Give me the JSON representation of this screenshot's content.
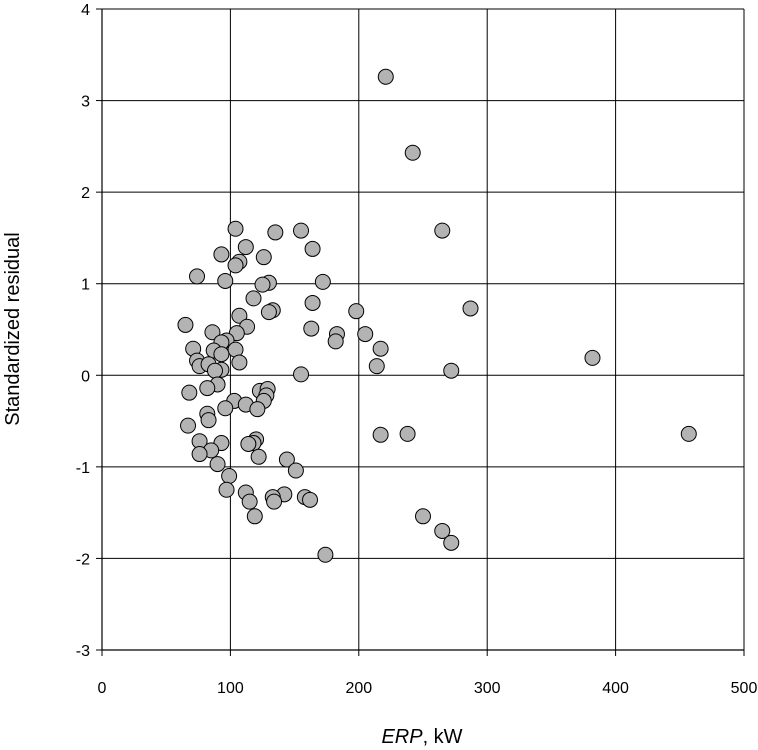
{
  "chart_data": {
    "type": "scatter",
    "title": "",
    "xlabel_italic": "ERP",
    "xlabel_rest": ", kW",
    "ylabel": "Standardized residual",
    "xlim": [
      0,
      500
    ],
    "ylim": [
      -3,
      4
    ],
    "xticks": [
      0,
      100,
      200,
      300,
      400,
      500
    ],
    "yticks": [
      -3,
      -2,
      -1,
      0,
      1,
      2,
      3,
      4
    ],
    "grid": true,
    "marker_fill": "#b3b3b3",
    "marker_edge": "#000000",
    "series": [
      {
        "points": [
          [
            221,
            3.26
          ],
          [
            242,
            2.43
          ],
          [
            265,
            1.58
          ],
          [
            287,
            0.73
          ],
          [
            382,
            0.19
          ],
          [
            457,
            -0.64
          ],
          [
            104,
            1.6
          ],
          [
            155,
            1.58
          ],
          [
            135,
            1.56
          ],
          [
            164,
            1.38
          ],
          [
            112,
            1.4
          ],
          [
            93,
            1.32
          ],
          [
            126,
            1.29
          ],
          [
            107,
            1.24
          ],
          [
            104,
            1.2
          ],
          [
            74,
            1.08
          ],
          [
            172,
            1.02
          ],
          [
            96,
            1.03
          ],
          [
            130,
            1.01
          ],
          [
            125,
            0.99
          ],
          [
            118,
            0.84
          ],
          [
            164,
            0.79
          ],
          [
            133,
            0.71
          ],
          [
            130,
            0.69
          ],
          [
            198,
            0.7
          ],
          [
            107,
            0.65
          ],
          [
            65,
            0.55
          ],
          [
            113,
            0.53
          ],
          [
            163,
            0.51
          ],
          [
            105,
            0.46
          ],
          [
            86,
            0.47
          ],
          [
            183,
            0.45
          ],
          [
            205,
            0.45
          ],
          [
            182,
            0.37
          ],
          [
            97,
            0.38
          ],
          [
            93,
            0.36
          ],
          [
            71,
            0.29
          ],
          [
            217,
            0.29
          ],
          [
            104,
            0.28
          ],
          [
            87,
            0.27
          ],
          [
            93,
            0.23
          ],
          [
            74,
            0.16
          ],
          [
            107,
            0.14
          ],
          [
            76,
            0.1
          ],
          [
            214,
            0.1
          ],
          [
            83,
            0.12
          ],
          [
            93,
            0.06
          ],
          [
            88,
            0.05
          ],
          [
            272,
            0.05
          ],
          [
            155,
            0.01
          ],
          [
            90,
            -0.1
          ],
          [
            82,
            -0.14
          ],
          [
            68,
            -0.19
          ],
          [
            123,
            -0.17
          ],
          [
            129,
            -0.15
          ],
          [
            128,
            -0.22
          ],
          [
            103,
            -0.28
          ],
          [
            126,
            -0.28
          ],
          [
            112,
            -0.32
          ],
          [
            96,
            -0.36
          ],
          [
            121,
            -0.37
          ],
          [
            82,
            -0.42
          ],
          [
            83,
            -0.49
          ],
          [
            67,
            -0.55
          ],
          [
            217,
            -0.65
          ],
          [
            238,
            -0.64
          ],
          [
            120,
            -0.7
          ],
          [
            76,
            -0.72
          ],
          [
            118,
            -0.74
          ],
          [
            93,
            -0.74
          ],
          [
            114,
            -0.75
          ],
          [
            85,
            -0.82
          ],
          [
            76,
            -0.86
          ],
          [
            122,
            -0.89
          ],
          [
            144,
            -0.92
          ],
          [
            90,
            -0.97
          ],
          [
            151,
            -1.04
          ],
          [
            99,
            -1.1
          ],
          [
            97,
            -1.25
          ],
          [
            112,
            -1.28
          ],
          [
            142,
            -1.3
          ],
          [
            133,
            -1.33
          ],
          [
            158,
            -1.33
          ],
          [
            162,
            -1.36
          ],
          [
            134,
            -1.38
          ],
          [
            115,
            -1.38
          ],
          [
            250,
            -1.54
          ],
          [
            119,
            -1.54
          ],
          [
            265,
            -1.7
          ],
          [
            272,
            -1.83
          ],
          [
            174,
            -1.96
          ]
        ]
      }
    ]
  }
}
